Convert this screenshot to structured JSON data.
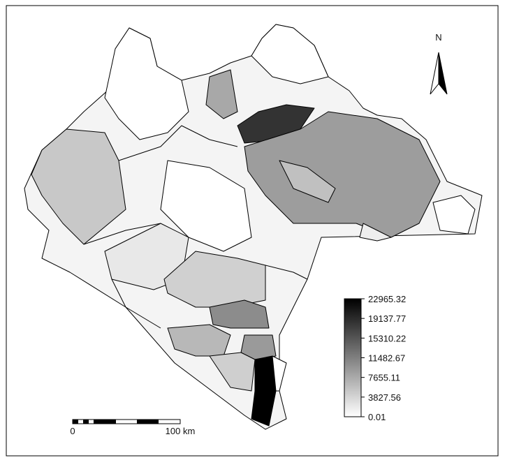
{
  "north": "N",
  "legend": {
    "range": [
      0.01,
      22965.32
    ],
    "ticks": [
      22965.32,
      19137.77,
      15310.22,
      11482.67,
      7655.11,
      3827.56,
      0.01
    ]
  },
  "scale_bar": {
    "start": "0",
    "end": "100 km"
  }
}
